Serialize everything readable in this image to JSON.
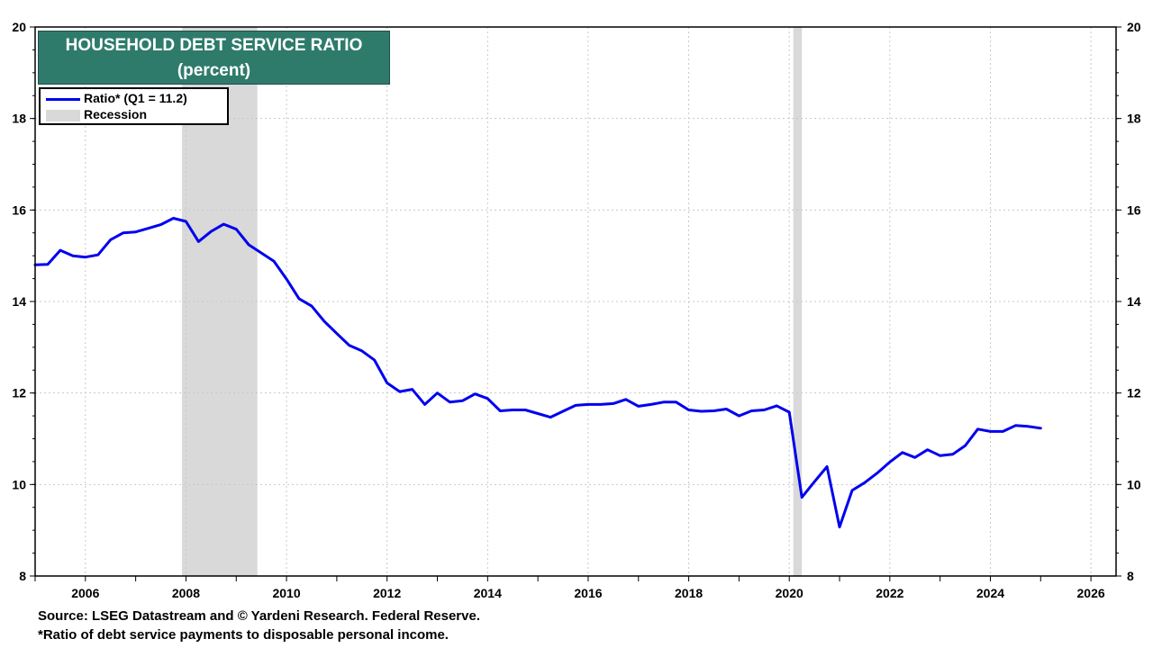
{
  "chart_data": {
    "type": "line",
    "title": "HOUSEHOLD DEBT SERVICE RATIO",
    "subtitle": "(percent)",
    "ylim": [
      8,
      20
    ],
    "xlim": [
      2005.0,
      2026.5
    ],
    "y_ticks": [
      "8",
      "10",
      "12",
      "14",
      "16",
      "18",
      "20"
    ],
    "x_ticks": [
      "2006",
      "2008",
      "2010",
      "2012",
      "2014",
      "2016",
      "2018",
      "2020",
      "2022",
      "2024",
      "2026"
    ],
    "grid": true,
    "legend_position": "top-left",
    "recessions": [
      [
        2007.92,
        2009.42
      ],
      [
        2020.08,
        2020.25
      ]
    ],
    "series": [
      {
        "name": "Ratio*  (Q1 = 11.2)",
        "color": "#0000ee",
        "x": [
          2005.0,
          2005.25,
          2005.5,
          2005.75,
          2006.0,
          2006.25,
          2006.5,
          2006.75,
          2007.0,
          2007.25,
          2007.5,
          2007.75,
          2008.0,
          2008.25,
          2008.5,
          2008.75,
          2009.0,
          2009.25,
          2009.5,
          2009.75,
          2010.0,
          2010.25,
          2010.5,
          2010.75,
          2011.0,
          2011.25,
          2011.5,
          2011.75,
          2012.0,
          2012.25,
          2012.5,
          2012.75,
          2013.0,
          2013.25,
          2013.5,
          2013.75,
          2014.0,
          2014.25,
          2014.5,
          2014.75,
          2015.0,
          2015.25,
          2015.5,
          2015.75,
          2016.0,
          2016.25,
          2016.5,
          2016.75,
          2017.0,
          2017.25,
          2017.5,
          2017.75,
          2018.0,
          2018.25,
          2018.5,
          2018.75,
          2019.0,
          2019.25,
          2019.5,
          2019.75,
          2020.0,
          2020.25,
          2020.5,
          2020.75,
          2021.0,
          2021.25,
          2021.5,
          2021.75,
          2022.0,
          2022.25,
          2022.5,
          2022.75,
          2023.0,
          2023.25,
          2023.5,
          2023.75,
          2024.0,
          2024.25,
          2024.5,
          2024.75,
          2025.0
        ],
        "values": [
          14.8,
          14.81,
          15.12,
          15.0,
          14.97,
          15.02,
          15.35,
          15.5,
          15.52,
          15.6,
          15.68,
          15.82,
          15.75,
          15.31,
          15.53,
          15.69,
          15.58,
          15.24,
          15.06,
          14.88,
          14.49,
          14.06,
          13.9,
          13.57,
          13.3,
          13.04,
          12.92,
          12.72,
          12.22,
          12.03,
          12.08,
          11.75,
          12.0,
          11.8,
          11.83,
          11.98,
          11.88,
          11.61,
          11.63,
          11.63,
          11.55,
          11.47,
          11.6,
          11.73,
          11.75,
          11.75,
          11.77,
          11.86,
          11.71,
          11.75,
          11.8,
          11.8,
          11.63,
          11.6,
          11.61,
          11.65,
          11.5,
          11.61,
          11.63,
          11.72,
          11.58,
          9.72,
          10.06,
          10.39,
          9.07,
          9.87,
          10.04,
          10.25,
          10.49,
          10.7,
          10.59,
          10.76,
          10.63,
          10.66,
          10.85,
          11.21,
          11.16,
          11.16,
          11.29,
          11.27,
          11.23
        ]
      },
      {
        "name": "Recession",
        "color": "#d9d9d9"
      }
    ]
  },
  "footer": {
    "source": "Source: LSEG Datastream and © Yardeni Research. Federal Reserve.",
    "note": "*Ratio of debt service payments to disposable personal income."
  }
}
